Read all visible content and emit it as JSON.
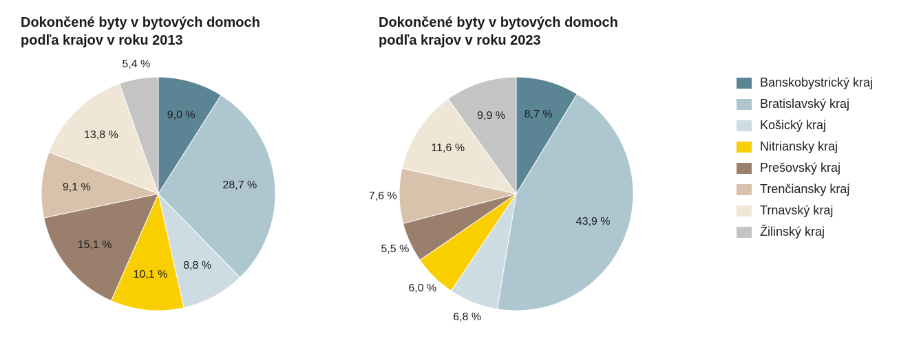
{
  "background_color": "#ffffff",
  "text_color": "#1a1a1a",
  "label_fontsize": 16,
  "title_fontsize": 20,
  "legend_fontsize": 18,
  "percent_format_suffix": " %",
  "regions": [
    {
      "key": "banskobystricky",
      "label": "Banskobystrický kraj",
      "color": "#5b8594"
    },
    {
      "key": "bratislavsky",
      "label": "Bratislavský kraj",
      "color": "#aec6cf"
    },
    {
      "key": "kosicky",
      "label": "Košický kraj",
      "color": "#cddce2"
    },
    {
      "key": "nitriansky",
      "label": "Nitriansky kraj",
      "color": "#f9cf00"
    },
    {
      "key": "presovsky",
      "label": "Prešovský kraj",
      "color": "#9a7f6d"
    },
    {
      "key": "trenciansky",
      "label": "Trenčiansky kraj",
      "color": "#d8c2ab"
    },
    {
      "key": "trnavsky",
      "label": "Trnavský kraj",
      "color": "#f0e6d6"
    },
    {
      "key": "zilinsky",
      "label": "Žilinský kraj",
      "color": "#c4c4c4"
    }
  ],
  "charts": [
    {
      "id": "chart_2013",
      "type": "pie",
      "title": "Dokončené byty v bytových domoch\npodľa krajov v roku 2013",
      "pie_radius": 170,
      "label_radius_inner": 0.7,
      "label_radius_outer": 1.12,
      "label_outer_threshold_pct": 7.0,
      "start_angle_deg": 0,
      "slices": [
        {
          "region": "banskobystricky",
          "value": 9.0,
          "label": "9,0 %"
        },
        {
          "region": "bratislavsky",
          "value": 28.7,
          "label": "28,7 %"
        },
        {
          "region": "kosicky",
          "value": 8.8,
          "label": "8,8 %"
        },
        {
          "region": "nitriansky",
          "value": 10.1,
          "label": "10,1 %"
        },
        {
          "region": "presovsky",
          "value": 15.1,
          "label": "15,1 %"
        },
        {
          "region": "trenciansky",
          "value": 9.1,
          "label": "9,1 %"
        },
        {
          "region": "trnavsky",
          "value": 13.8,
          "label": "13,8 %"
        },
        {
          "region": "zilinsky",
          "value": 5.4,
          "label": "5,4 %"
        }
      ]
    },
    {
      "id": "chart_2023",
      "type": "pie",
      "title": "Dokončené byty v bytových domoch\npodľa krajov v roku 2023",
      "pie_radius": 170,
      "label_radius_inner": 0.7,
      "label_radius_outer": 1.14,
      "label_outer_threshold_pct": 8.0,
      "start_angle_deg": 0,
      "slices": [
        {
          "region": "banskobystricky",
          "value": 8.7,
          "label": "8,7 %"
        },
        {
          "region": "bratislavsky",
          "value": 43.9,
          "label": "43,9 %"
        },
        {
          "region": "kosicky",
          "value": 6.8,
          "label": "6,8 %"
        },
        {
          "region": "nitriansky",
          "value": 6.0,
          "label": "6,0 %"
        },
        {
          "region": "presovsky",
          "value": 5.5,
          "label": "5,5 %"
        },
        {
          "region": "trenciansky",
          "value": 7.6,
          "label": "7,6 %"
        },
        {
          "region": "trnavsky",
          "value": 11.6,
          "label": "11,6 %"
        },
        {
          "region": "zilinsky",
          "value": 9.9,
          "label": "9,9 %"
        }
      ]
    }
  ]
}
